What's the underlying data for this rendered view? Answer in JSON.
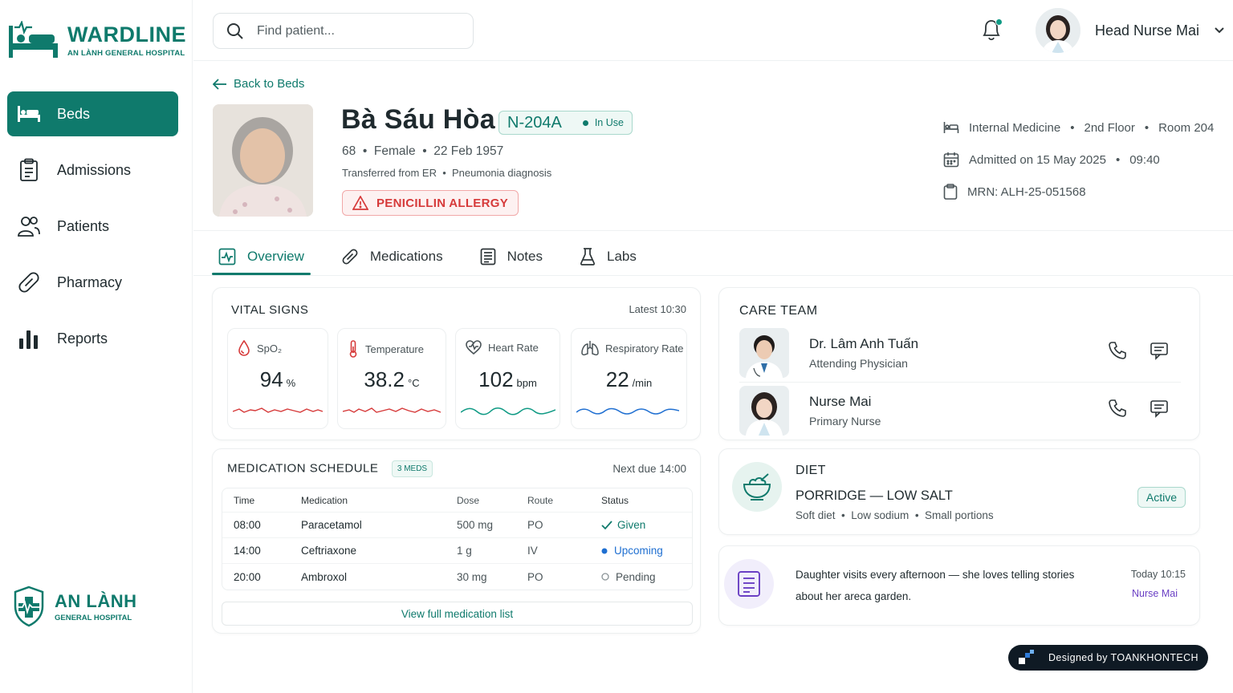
{
  "brand": {
    "name": "WARDLINE",
    "hospital": "AN LÀNH GENERAL HOSPITAL",
    "footer_name": "AN LÀNH",
    "footer_sub": "GENERAL HOSPITAL",
    "accent": "#0f7a6c"
  },
  "sidebar": {
    "items": [
      {
        "label": "Beds",
        "icon": "bed-icon",
        "active": true
      },
      {
        "label": "Admissions",
        "icon": "clipboard-icon"
      },
      {
        "label": "Patients",
        "icon": "users-icon"
      },
      {
        "label": "Pharmacy",
        "icon": "pill-icon"
      },
      {
        "label": "Reports",
        "icon": "bar-chart-icon"
      }
    ]
  },
  "topbar": {
    "search_placeholder": "Find patient...",
    "user_name": "Head Nurse Mai"
  },
  "patient": {
    "back_label": "Back to Beds",
    "name": "Bà Sáu Hòa",
    "bed_code": "N-204A",
    "bed_status": "In Use",
    "age": "68",
    "sex": "Female",
    "dob": "22 Feb 1957",
    "transfer": "Transferred from ER",
    "diagnosis": "Pneumonia diagnosis",
    "allergy": "PENICILLIN ALLERGY",
    "department": "Internal Medicine",
    "floor": "2nd Floor",
    "room": "Room 204",
    "admitted": "Admitted on 15 May 2025",
    "admitted_time": "09:40",
    "mrn": "MRN: ALH-25-051568"
  },
  "tabs": [
    {
      "label": "Overview",
      "icon": "activity-icon",
      "active": true
    },
    {
      "label": "Medications",
      "icon": "pill-icon"
    },
    {
      "label": "Notes",
      "icon": "document-icon"
    },
    {
      "label": "Labs",
      "icon": "flask-icon"
    }
  ],
  "vitals": {
    "title": "VITAL SIGNS",
    "latest": "Latest 10:30",
    "items": [
      {
        "label": "SpO₂",
        "value": "94",
        "unit": "%",
        "icon": "drop-icon",
        "color": "#d63a3a"
      },
      {
        "label": "Temperature",
        "value": "38.2",
        "unit": "°C",
        "icon": "thermometer-icon",
        "color": "#d63a3a"
      },
      {
        "label": "Heart Rate",
        "value": "102",
        "unit": "bpm",
        "icon": "heart-pulse-icon",
        "color": "#0f9a84"
      },
      {
        "label": "Respiratory Rate",
        "value": "22",
        "unit": "/min",
        "icon": "lungs-icon",
        "color": "#1f6fd1"
      }
    ]
  },
  "medications": {
    "title": "MEDICATION SCHEDULE",
    "count_badge": "3 MEDS",
    "next_due": "Next due 14:00",
    "columns": [
      "Time",
      "Medication",
      "Dose",
      "Route",
      "Status"
    ],
    "rows": [
      {
        "time": "08:00",
        "name": "Paracetamol",
        "dose": "500 mg",
        "route": "PO",
        "status": "Given"
      },
      {
        "time": "14:00",
        "name": "Ceftriaxone",
        "dose": "1 g",
        "route": "IV",
        "status": "Upcoming"
      },
      {
        "time": "20:00",
        "name": "Ambroxol",
        "dose": "30 mg",
        "route": "PO",
        "status": "Pending"
      }
    ],
    "view_all": "View full medication list"
  },
  "care_team": {
    "title": "CARE TEAM",
    "members": [
      {
        "name": "Dr. Lâm Anh Tuấn",
        "role": "Attending Physician"
      },
      {
        "name": "Nurse Mai",
        "role": "Primary Nurse"
      }
    ]
  },
  "diet": {
    "label": "DIET",
    "title": "PORRIDGE — LOW SALT",
    "d1": "Soft diet",
    "d2": "Low sodium",
    "d3": "Small portions",
    "status": "Active"
  },
  "note": {
    "text": "Daughter visits every afternoon — she loves telling stories about her areca garden.",
    "time": "Today 10:15",
    "author": "Nurse Mai"
  },
  "credit": "Designed by TOANKHONTECH"
}
